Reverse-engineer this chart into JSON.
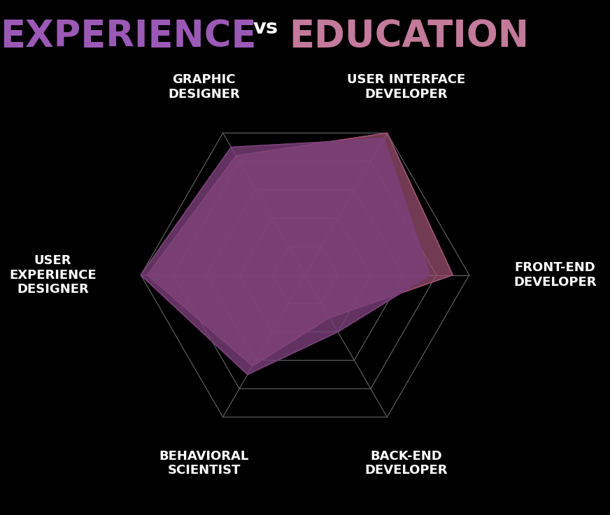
{
  "title_experience": "EXPERIENCE",
  "title_vs": "vs",
  "title_education": "EDUCATION",
  "title_experience_color": "#9b59b6",
  "title_vs_color": "#ffffff",
  "title_education_color": "#c47a9a",
  "background_color": "#000000",
  "categories": [
    "GRAPHIC\nDESIGNER",
    "USER INTERFACE\nDEVELOPER",
    "FRONT-END\nDEVELOPER",
    "BACK-END\nDEVELOPER",
    "BEHAVIORAL\nSCIENTIST",
    "USER\nEXPERIENCE\nDESIGNER"
  ],
  "experience_values": [
    4.5,
    4.8,
    3.8,
    2.0,
    3.5,
    5.0
  ],
  "education_values": [
    4.2,
    5.0,
    4.5,
    1.5,
    3.2,
    4.8
  ],
  "experience_color": "#7b3f7a",
  "education_color": "#9b5070",
  "experience_alpha": 0.8,
  "education_alpha": 0.75,
  "grid_color": "#666666",
  "spine_color": "#888888",
  "label_color": "#ffffff",
  "num_levels": 5,
  "max_value": 5.0,
  "label_fontsize": 13,
  "title_fontsize": 38
}
